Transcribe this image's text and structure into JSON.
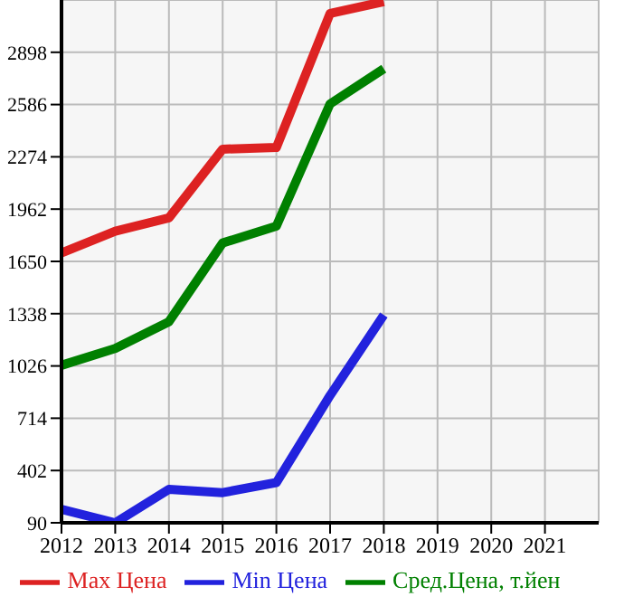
{
  "chart_data": {
    "type": "line",
    "x": [
      2012,
      2013,
      2014,
      2015,
      2016,
      2017,
      2018
    ],
    "series": [
      {
        "name": "Max Цена",
        "color": "#dd2222",
        "values": [
          1700,
          1830,
          1910,
          2320,
          2330,
          3130,
          3200
        ]
      },
      {
        "name": "Min Цена",
        "color": "#2222dd",
        "values": [
          170,
          90,
          290,
          270,
          330,
          850,
          1330
        ]
      },
      {
        "name": "Сред.Цена, т.йен",
        "color": "#008000",
        "values": [
          1030,
          1130,
          1290,
          1760,
          1860,
          2590,
          2800
        ]
      }
    ],
    "xlim": [
      2012,
      2022
    ],
    "xticks": [
      2012,
      2013,
      2014,
      2015,
      2016,
      2017,
      2018,
      2019,
      2020,
      2021
    ],
    "ylim": [
      90,
      3210
    ],
    "yticks": [
      90,
      402,
      714,
      1026,
      1338,
      1650,
      1962,
      2274,
      2586,
      2898
    ],
    "grid": true,
    "legend": "bottom",
    "marker": "none",
    "line_style": "solid"
  }
}
